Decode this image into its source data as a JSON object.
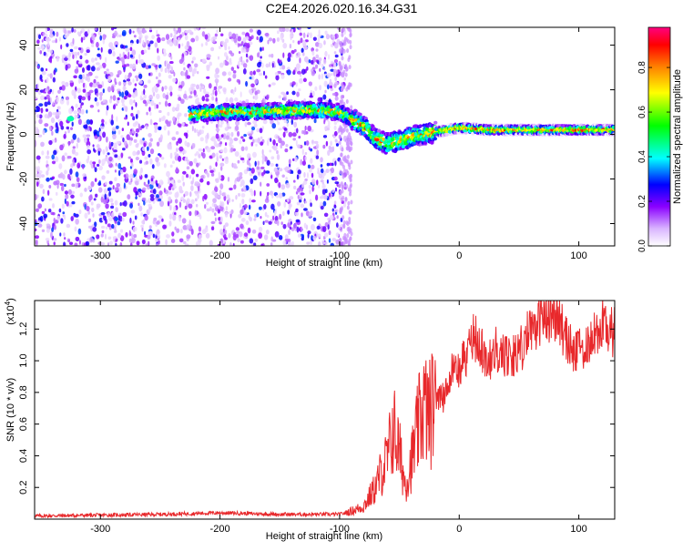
{
  "title": "C2E4.2026.020.16.34.G31",
  "chart_data": [
    {
      "type": "heatmap",
      "xlabel": "Height of straight line (km)",
      "ylabel": "Frequency (Hz)",
      "xlim": [
        -355,
        130
      ],
      "ylim": [
        -50,
        48
      ],
      "xticks": [
        -300,
        -200,
        -100,
        0,
        100
      ],
      "yticks": [
        -40,
        -20,
        0,
        20,
        40
      ],
      "colorbar": {
        "label": "Normalized spectral amplitude",
        "range": [
          0.0,
          0.98
        ],
        "ticks": [
          0.0,
          0.2,
          0.4,
          0.6,
          0.8
        ],
        "tick_labels": [
          "0.0",
          "0.2",
          "0.4",
          "0.6",
          "0.8"
        ],
        "colormap": [
          "#ffffff",
          "#8a00ff",
          "#0000ff",
          "#00ffff",
          "#00ff00",
          "#ffff00",
          "#ff8000",
          "#ff0000",
          "#ff0080"
        ]
      },
      "ridge": {
        "x": [
          -225,
          -200,
          -175,
          -150,
          -125,
          -100,
          -90,
          -80,
          -70,
          -60,
          -50,
          -40,
          -30,
          -20,
          -10,
          0,
          25,
          50,
          75,
          100,
          130
        ],
        "y": [
          9,
          10,
          10,
          10.5,
          11,
          10,
          7,
          4,
          -2,
          -4,
          -3,
          -1,
          0,
          1,
          2,
          3,
          2,
          2,
          2,
          2,
          2
        ]
      },
      "noise_region_x": [
        -355,
        -95
      ]
    },
    {
      "type": "line",
      "xlabel": "Height of straight line (km)",
      "ylabel": "SNR (10 * v/v)",
      "yscale_label": "(x10",
      "yscale_exp": "4",
      "yscale_close": ")",
      "xlim": [
        -355,
        130
      ],
      "ylim": [
        0,
        1.38
      ],
      "xticks": [
        -300,
        -200,
        -100,
        0,
        100
      ],
      "yticks": [
        0.2,
        0.4,
        0.6,
        0.8,
        1.0,
        1.2
      ],
      "ytick_labels": [
        "0.2",
        "0.4",
        "0.6",
        "0.8",
        "1.0",
        "1.2"
      ],
      "series": [
        {
          "color": "#e8282b",
          "x": [
            -355,
            -300,
            -250,
            -200,
            -150,
            -110,
            -100,
            -90,
            -80,
            -70,
            -65,
            -60,
            -55,
            -50,
            -45,
            -40,
            -35,
            -30,
            -25,
            -20,
            -15,
            -10,
            -5,
            0,
            5,
            10,
            15,
            20,
            25,
            30,
            40,
            50,
            60,
            70,
            80,
            90,
            95,
            100,
            110,
            120,
            130
          ],
          "y": [
            0.02,
            0.025,
            0.03,
            0.04,
            0.03,
            0.03,
            0.03,
            0.05,
            0.08,
            0.2,
            0.3,
            0.38,
            0.58,
            0.42,
            0.22,
            0.36,
            0.55,
            0.72,
            0.65,
            0.78,
            0.82,
            0.85,
            0.95,
            0.92,
            1.02,
            1.08,
            1.15,
            1.05,
            1.0,
            1.08,
            1.02,
            1.05,
            1.2,
            1.28,
            1.3,
            1.15,
            1.05,
            1.05,
            1.15,
            1.22,
            1.18
          ]
        }
      ]
    }
  ]
}
